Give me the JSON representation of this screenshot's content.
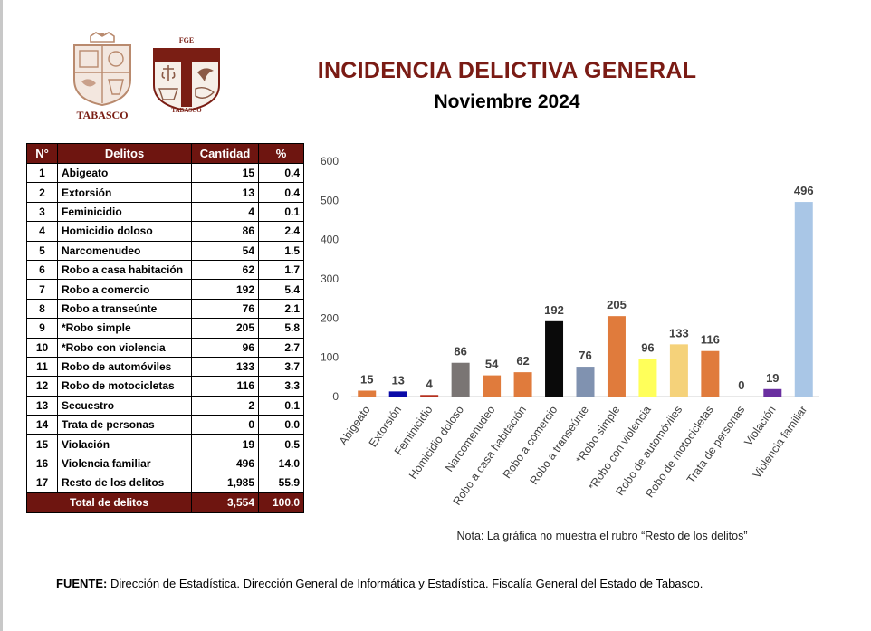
{
  "header": {
    "title": "INCIDENCIA DELICTIVA GENERAL",
    "subtitle": "Noviembre 2024",
    "logo_left_caption": "TABASCO",
    "logo_right_top": "FGE",
    "logo_right_caption": "TABASCO"
  },
  "table": {
    "headers": [
      "N°",
      "Delitos",
      "Cantidad",
      "%"
    ],
    "rows": [
      {
        "n": "1",
        "name": "Abigeato",
        "qty": "15",
        "pct": "0.4"
      },
      {
        "n": "2",
        "name": "Extorsión",
        "qty": "13",
        "pct": "0.4"
      },
      {
        "n": "3",
        "name": "Feminicidio",
        "qty": "4",
        "pct": "0.1"
      },
      {
        "n": "4",
        "name": "Homicidio doloso",
        "qty": "86",
        "pct": "2.4"
      },
      {
        "n": "5",
        "name": "Narcomenudeo",
        "qty": "54",
        "pct": "1.5"
      },
      {
        "n": "6",
        "name": "Robo a casa habitación",
        "qty": "62",
        "pct": "1.7"
      },
      {
        "n": "7",
        "name": "Robo a comercio",
        "qty": "192",
        "pct": "5.4"
      },
      {
        "n": "8",
        "name": "Robo a transeúnte",
        "qty": "76",
        "pct": "2.1"
      },
      {
        "n": "9",
        "name": "*Robo simple",
        "qty": "205",
        "pct": "5.8"
      },
      {
        "n": "10",
        "name": "*Robo con violencia",
        "qty": "96",
        "pct": "2.7"
      },
      {
        "n": "11",
        "name": "Robo de automóviles",
        "qty": "133",
        "pct": "3.7"
      },
      {
        "n": "12",
        "name": "Robo de motocicletas",
        "qty": "116",
        "pct": "3.3"
      },
      {
        "n": "13",
        "name": "Secuestro",
        "qty": "2",
        "pct": "0.1"
      },
      {
        "n": "14",
        "name": "Trata de personas",
        "qty": "0",
        "pct": "0.0"
      },
      {
        "n": "15",
        "name": "Violación",
        "qty": "19",
        "pct": "0.5"
      },
      {
        "n": "16",
        "name": "Violencia familiar",
        "qty": "496",
        "pct": "14.0"
      },
      {
        "n": "17",
        "name": "Resto de los delitos",
        "qty": "1,985",
        "pct": "55.9"
      }
    ],
    "total": {
      "label": "Total de delitos",
      "qty": "3,554",
      "pct": "100.0"
    }
  },
  "chart_data": {
    "type": "bar",
    "title": "",
    "categories": [
      "Abigeato",
      "Extorsión",
      "Feminicidio",
      "Homicidio doloso",
      "Narcomenudeo",
      "Robo a casa habitación",
      "Robo a comercio",
      "Robo a transeúnte",
      "*Robo simple",
      "*Robo con violencia",
      "Robo de automóviles",
      "Robo de motocicletas",
      "Trata de personas",
      "Violación",
      "Violencia familiar"
    ],
    "values": [
      15,
      13,
      4,
      86,
      54,
      62,
      192,
      76,
      205,
      96,
      133,
      116,
      0,
      19,
      496
    ],
    "colors": [
      "#e07b3c",
      "#0a0aa8",
      "#b5301f",
      "#7a7574",
      "#e07b3c",
      "#e07b3c",
      "#0a0a0a",
      "#8092b0",
      "#e07b3c",
      "#ffff5a",
      "#f5d27a",
      "#e07b3c",
      "#cccccc",
      "#6a2fa0",
      "#a9c6e6"
    ],
    "ylim": [
      0,
      600
    ],
    "yticks": [
      0,
      100,
      200,
      300,
      400,
      500,
      600
    ],
    "xlabel": "",
    "ylabel": "",
    "grid": false
  },
  "note": "Nota: La gráfica no muestra el rubro “Resto de los delitos”",
  "source": {
    "label": "FUENTE:",
    "text": " Dirección de Estadística. Dirección General de Informática y Estadística. Fiscalía General del Estado de Tabasco."
  }
}
